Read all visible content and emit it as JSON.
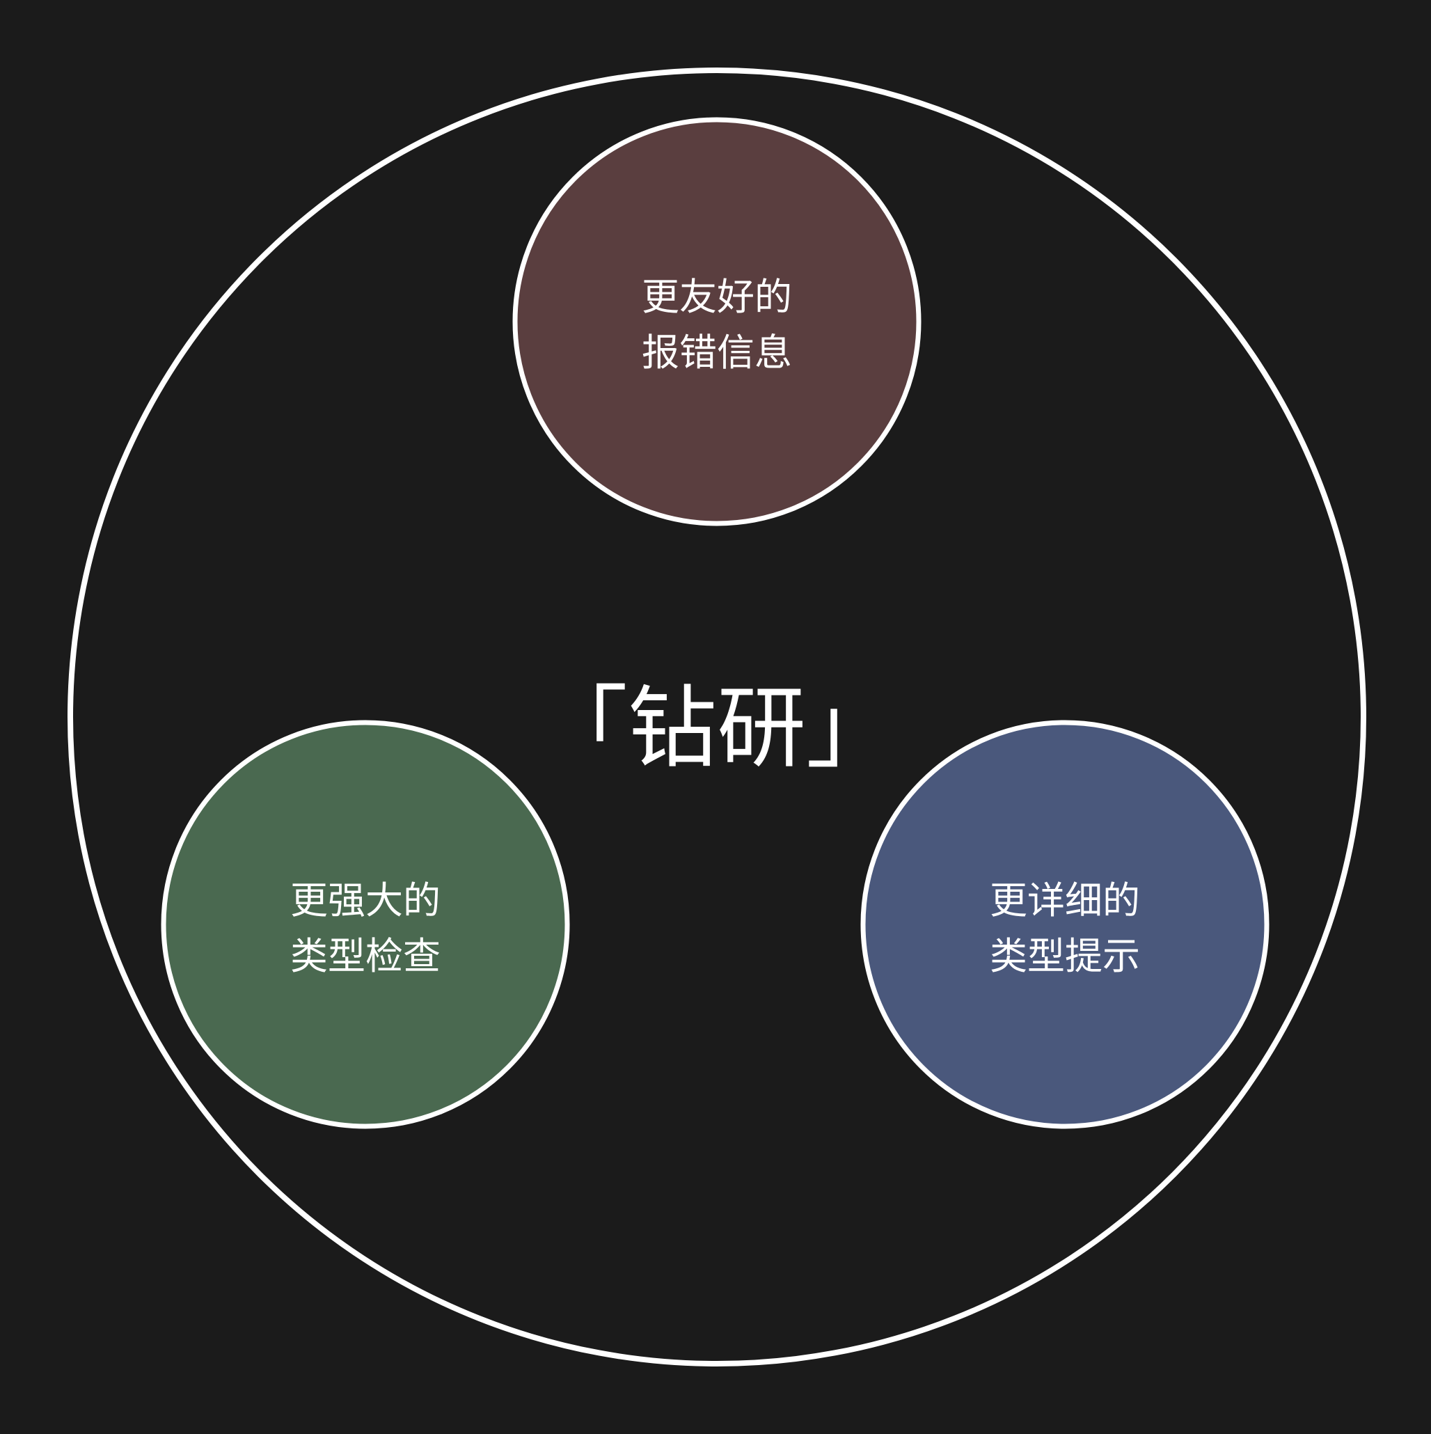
{
  "diagram": {
    "center_label": "「钻研」",
    "nodes": [
      {
        "line1": "更友好的",
        "line2": "报错信息",
        "color": "#5a3e3f"
      },
      {
        "line1": "更强大的",
        "line2": "类型检查",
        "color": "#4a6950"
      },
      {
        "line1": "更详细的",
        "line2": "类型提示",
        "color": "#4a587c"
      }
    ],
    "background_color": "#1b1b1b",
    "outline_color": "#ffffff"
  }
}
